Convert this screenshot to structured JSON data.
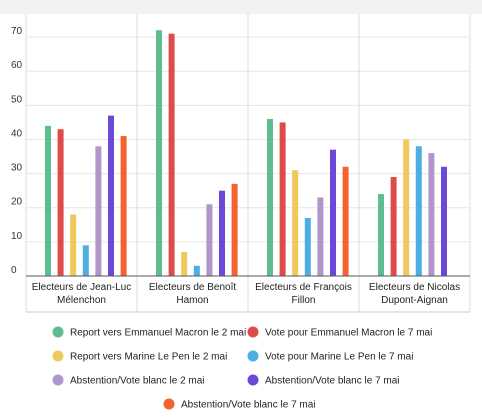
{
  "chart_data": {
    "type": "bar",
    "categories": [
      [
        "Electeurs de Jean-Luc",
        "Mélenchon"
      ],
      [
        "Electeurs de Benoît",
        "Hamon"
      ],
      [
        "Electeurs de François",
        "Fillon"
      ],
      [
        "Electeurs de Nicolas",
        "Dupont-Aignan"
      ]
    ],
    "ylim": [
      0,
      75
    ],
    "yticks": [
      0,
      10,
      20,
      30,
      40,
      50,
      60,
      70
    ],
    "grid": true,
    "legend_position": "bottom",
    "series": [
      {
        "name": "Report vers Emmanuel Macron le 2 mai",
        "color": "#5dbd8f",
        "values": [
          44,
          72,
          46,
          24
        ]
      },
      {
        "name": "Vote pour Emmanuel Macron le 7 mai",
        "color": "#de4b4b",
        "values": [
          43,
          71,
          45,
          29
        ]
      },
      {
        "name": "Report vers Marine Le Pen le 2 mai",
        "color": "#f0c95c",
        "values": [
          18,
          7,
          31,
          40
        ]
      },
      {
        "name": "Vote pour Marine Le Pen le 7 mai",
        "color": "#4daee3",
        "values": [
          9,
          3,
          17,
          38
        ]
      },
      {
        "name": "Abstention/Vote blanc le 2 mai",
        "color": "#b096cb",
        "values": [
          38,
          21,
          23,
          36
        ]
      },
      {
        "name": "Abstention/Vote blanc le 7 mai",
        "color": "#6a48d8",
        "values": [
          47,
          25,
          37,
          32
        ]
      },
      {
        "name": "Abstention/Vote blanc le 7 mai",
        "color": "#f4622e",
        "values": [
          41,
          27,
          32,
          null
        ]
      }
    ]
  }
}
